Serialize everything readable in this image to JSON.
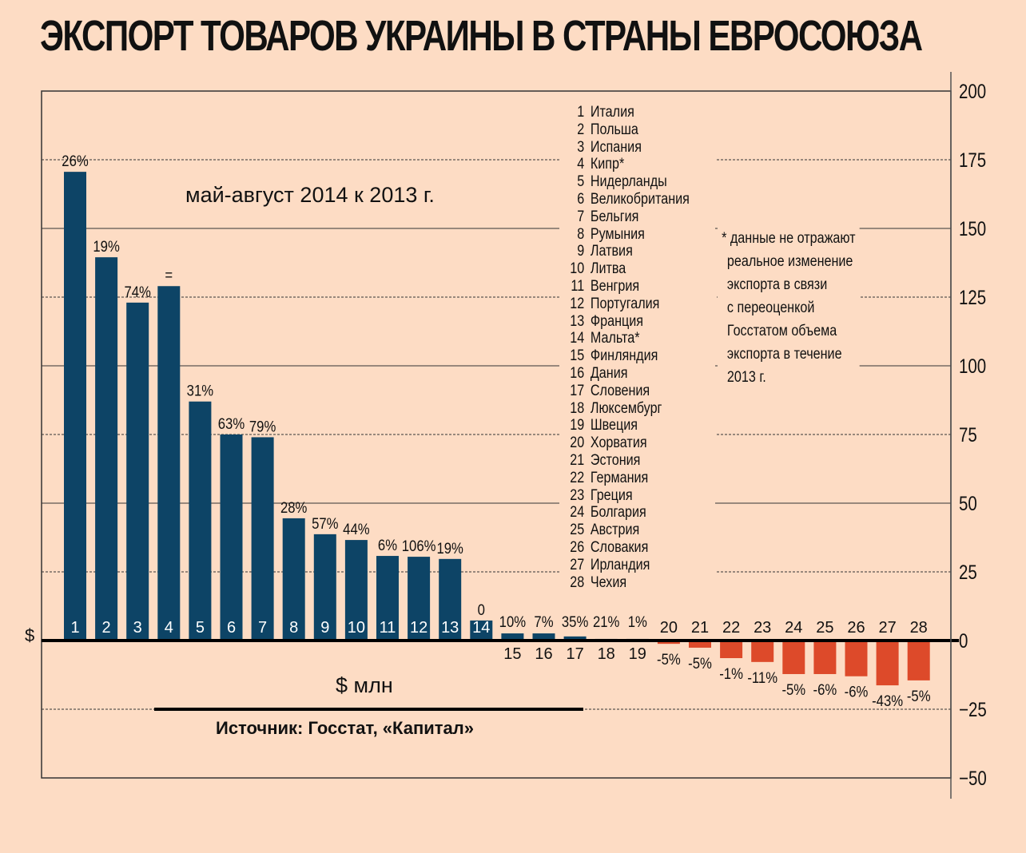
{
  "title": "ЭКСПОРТ ТОВАРОВ УКРАИНЫ В СТРАНЫ ЕВРОСОЮЗА",
  "colors": {
    "background": "#fddcc4",
    "positive": "#0d4466",
    "negative": "#dd4a2a"
  },
  "chart_data": {
    "type": "bar",
    "title": "ЭКСПОРТ ТОВАРОВ УКРАИНЫ В СТРАНЫ ЕВРОСОЮЗА",
    "subtitle": "май-август 2014 к 2013 г.",
    "ylabel": "$ млн",
    "yaxis_symbol": "$",
    "ylim": [
      -50,
      200
    ],
    "yticks": [
      200,
      175,
      150,
      125,
      100,
      75,
      50,
      25,
      0,
      -25,
      -50
    ],
    "ytick_labels": [
      "200",
      "175",
      "150",
      "125",
      "100",
      "75",
      "50",
      "25",
      "0",
      "−25",
      "−50"
    ],
    "categories": [
      "1",
      "2",
      "3",
      "4",
      "5",
      "6",
      "7",
      "8",
      "9",
      "10",
      "11",
      "12",
      "13",
      "14",
      "15",
      "16",
      "17",
      "18",
      "19",
      "20",
      "21",
      "22",
      "23",
      "24",
      "25",
      "26",
      "27",
      "28"
    ],
    "values": [
      170.6,
      139.5,
      123,
      129,
      87,
      75,
      74,
      44.5,
      38.7,
      36.6,
      30.8,
      30.5,
      29.7,
      7.3,
      2.6,
      2.6,
      1.5,
      0.6,
      0.6,
      -1.2,
      -2.6,
      -6.4,
      -7.8,
      -12.2,
      -12.2,
      -13,
      -16.3,
      -14.5
    ],
    "data_labels": [
      "26%",
      "19%",
      "74%",
      "=",
      "31%",
      "63%",
      "79%",
      "28%",
      "57%",
      "44%",
      "6%",
      "106%",
      "19%",
      "0",
      "10%",
      "7%",
      "35%",
      "21%",
      "1%",
      "-5%",
      "-5%",
      "-1%",
      "-11%",
      "-5%",
      "-6%",
      "-6%",
      "-43%",
      "-5%"
    ],
    "legend": [
      {
        "n": "1",
        "name": "Италия"
      },
      {
        "n": "2",
        "name": "Польша"
      },
      {
        "n": "3",
        "name": "Испания"
      },
      {
        "n": "4",
        "name": "Кипр*"
      },
      {
        "n": "5",
        "name": "Нидерланды"
      },
      {
        "n": "6",
        "name": "Великобритания"
      },
      {
        "n": "7",
        "name": "Бельгия"
      },
      {
        "n": "8",
        "name": "Румыния"
      },
      {
        "n": "9",
        "name": "Латвия"
      },
      {
        "n": "10",
        "name": "Литва"
      },
      {
        "n": "11",
        "name": "Венгрия"
      },
      {
        "n": "12",
        "name": "Португалия"
      },
      {
        "n": "13",
        "name": "Франция"
      },
      {
        "n": "14",
        "name": "Мальта*"
      },
      {
        "n": "15",
        "name": "Финляндия"
      },
      {
        "n": "16",
        "name": "Дания"
      },
      {
        "n": "17",
        "name": "Словения"
      },
      {
        "n": "18",
        "name": "Люксембург"
      },
      {
        "n": "19",
        "name": "Швеция"
      },
      {
        "n": "20",
        "name": "Хорватия"
      },
      {
        "n": "21",
        "name": "Эстония"
      },
      {
        "n": "22",
        "name": "Германия"
      },
      {
        "n": "23",
        "name": "Греция"
      },
      {
        "n": "24",
        "name": "Болгария"
      },
      {
        "n": "25",
        "name": "Австрия"
      },
      {
        "n": "26",
        "name": "Словакия"
      },
      {
        "n": "27",
        "name": "Ирландия"
      },
      {
        "n": "28",
        "name": "Чехия"
      }
    ],
    "footnote": [
      "* данные не отражают",
      "реальное изменение",
      "экспорта в связи",
      "с переоценкой",
      "Госстатом объема",
      "экспорта в течение",
      "2013 г."
    ],
    "source": "Источник: Госстат, «Капитал»"
  }
}
